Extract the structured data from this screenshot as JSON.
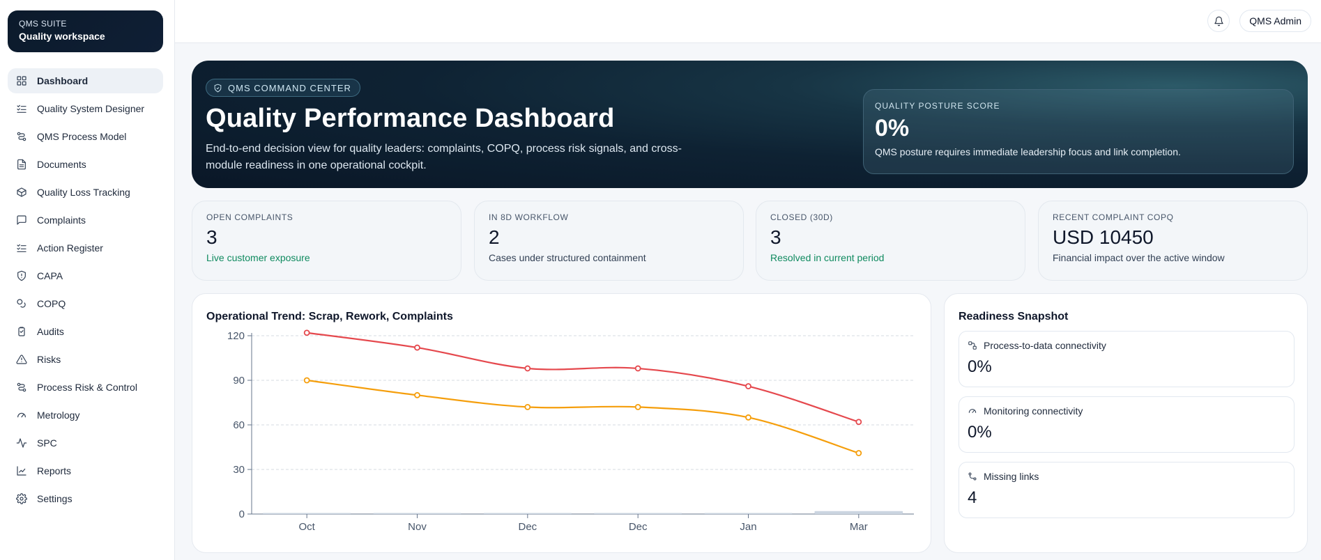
{
  "brand": {
    "eyebrow": "QMS SUITE",
    "name": "Quality workspace"
  },
  "sidebar": {
    "items": [
      {
        "label": "Dashboard",
        "icon": "grid-icon",
        "active": true
      },
      {
        "label": "Quality System Designer",
        "icon": "checklist-icon"
      },
      {
        "label": "QMS Process Model",
        "icon": "route-icon"
      },
      {
        "label": "Documents",
        "icon": "document-icon"
      },
      {
        "label": "Quality Loss Tracking",
        "icon": "package-icon"
      },
      {
        "label": "Complaints",
        "icon": "message-icon"
      },
      {
        "label": "Action Register",
        "icon": "checklist-icon"
      },
      {
        "label": "CAPA",
        "icon": "shield-icon"
      },
      {
        "label": "COPQ",
        "icon": "coins-icon"
      },
      {
        "label": "Audits",
        "icon": "clipboard-icon"
      },
      {
        "label": "Risks",
        "icon": "warning-icon"
      },
      {
        "label": "Process Risk & Control",
        "icon": "route-icon"
      },
      {
        "label": "Metrology",
        "icon": "gauge-icon"
      },
      {
        "label": "SPC",
        "icon": "activity-icon"
      },
      {
        "label": "Reports",
        "icon": "line-chart-icon"
      },
      {
        "label": "Settings",
        "icon": "gear-icon"
      }
    ]
  },
  "topbar": {
    "user": "QMS Admin"
  },
  "hero": {
    "pill": "QMS COMMAND CENTER",
    "title": "Quality Performance Dashboard",
    "description": "End-to-end decision view for quality leaders: complaints, COPQ, process risk signals, and cross-module readiness in one operational cockpit.",
    "posture": {
      "label": "QUALITY POSTURE SCORE",
      "value": "0%",
      "note": "QMS posture requires immediate leadership focus and link completion."
    }
  },
  "kpis": [
    {
      "label": "OPEN COMPLAINTS",
      "value": "3",
      "sub": "Live customer exposure",
      "tone": "green"
    },
    {
      "label": "IN 8D WORKFLOW",
      "value": "2",
      "sub": "Cases under structured containment",
      "tone": "neutral"
    },
    {
      "label": "CLOSED (30D)",
      "value": "3",
      "sub": "Resolved in current period",
      "tone": "green"
    },
    {
      "label": "RECENT COMPLAINT COPQ",
      "value": "USD 10450",
      "sub": "Financial impact over the active window",
      "tone": "neutral"
    }
  ],
  "chart": {
    "title": "Operational Trend: Scrap, Rework, Complaints"
  },
  "chart_data": {
    "type": "line",
    "categories": [
      "Oct",
      "Nov",
      "Dec",
      "Dec",
      "Jan",
      "Mar"
    ],
    "series": [
      {
        "values": [
          122,
          112,
          98,
          98,
          86,
          62
        ],
        "color": "#e5484d"
      },
      {
        "values": [
          90,
          80,
          72,
          72,
          65,
          41
        ],
        "color": "#f59e0b"
      },
      {
        "values": [
          0,
          0,
          0,
          0,
          0,
          2
        ],
        "color": "#cbd5e1",
        "kind": "bar"
      }
    ],
    "yticks": [
      0,
      30,
      60,
      90,
      120
    ],
    "ylim": [
      0,
      120
    ],
    "grid": true
  },
  "readiness": {
    "title": "Readiness Snapshot",
    "items": [
      {
        "label": "Process-to-data connectivity",
        "value": "0%",
        "icon": "route-icon"
      },
      {
        "label": "Monitoring connectivity",
        "value": "0%",
        "icon": "gauge-icon"
      },
      {
        "label": "Missing links",
        "value": "4",
        "icon": "link-icon"
      }
    ]
  }
}
